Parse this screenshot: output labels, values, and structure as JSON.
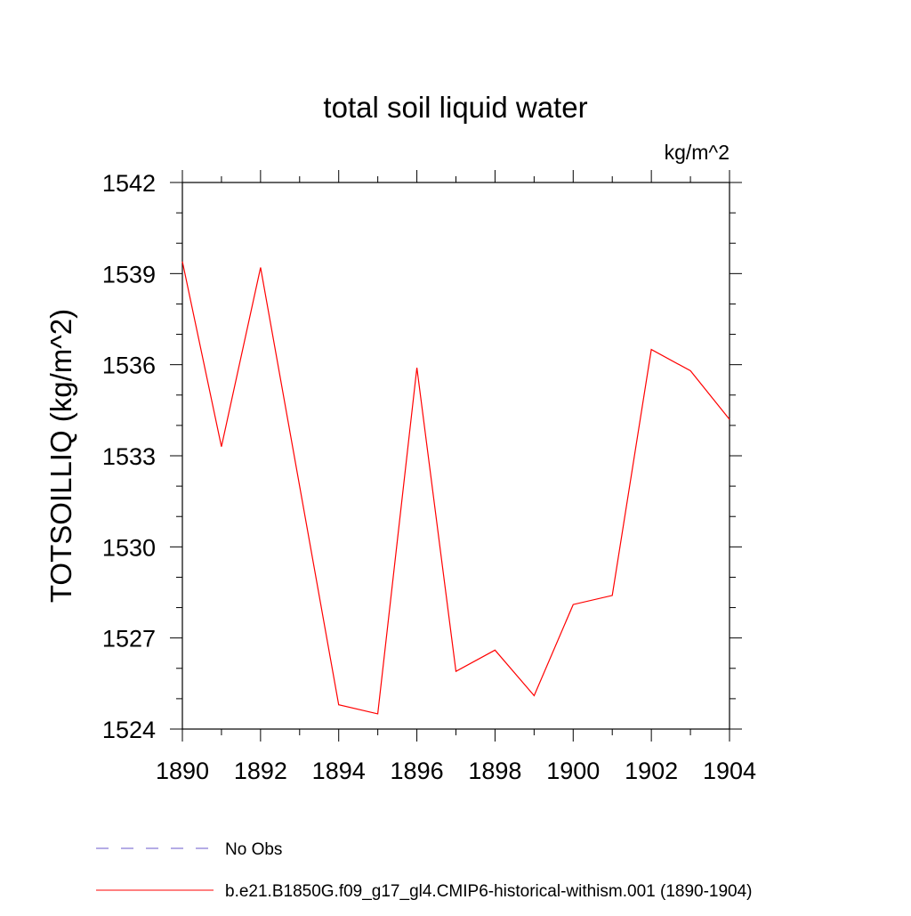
{
  "chart_data": {
    "type": "line",
    "title": "total soil liquid water",
    "units_label": "kg/m^2",
    "ylabel": "TOTSOILLIQ  (kg/m^2)",
    "xlabel": "",
    "xlim": [
      1890,
      1904
    ],
    "ylim": [
      1524,
      1542
    ],
    "x_ticks": [
      1890,
      1892,
      1894,
      1896,
      1898,
      1900,
      1902,
      1904
    ],
    "y_ticks": [
      1524,
      1527,
      1530,
      1533,
      1536,
      1539,
      1542
    ],
    "grid": false,
    "legend_position": "bottom-left",
    "series": [
      {
        "name": "No Obs",
        "color": "#6a5acd",
        "dash": true,
        "x": [],
        "y": []
      },
      {
        "name": "b.e21.B1850G.f09_g17_gl4.CMIP6-historical-withism.001 (1890-1904)",
        "color": "#ff0000",
        "dash": false,
        "x": [
          1890,
          1891,
          1892,
          1893,
          1894,
          1895,
          1896,
          1897,
          1898,
          1899,
          1900,
          1901,
          1902,
          1903,
          1904
        ],
        "y": [
          1539.4,
          1533.3,
          1539.2,
          1532.0,
          1524.8,
          1524.5,
          1535.9,
          1525.9,
          1526.6,
          1525.1,
          1528.1,
          1528.4,
          1536.5,
          1535.8,
          1534.2
        ]
      }
    ]
  }
}
